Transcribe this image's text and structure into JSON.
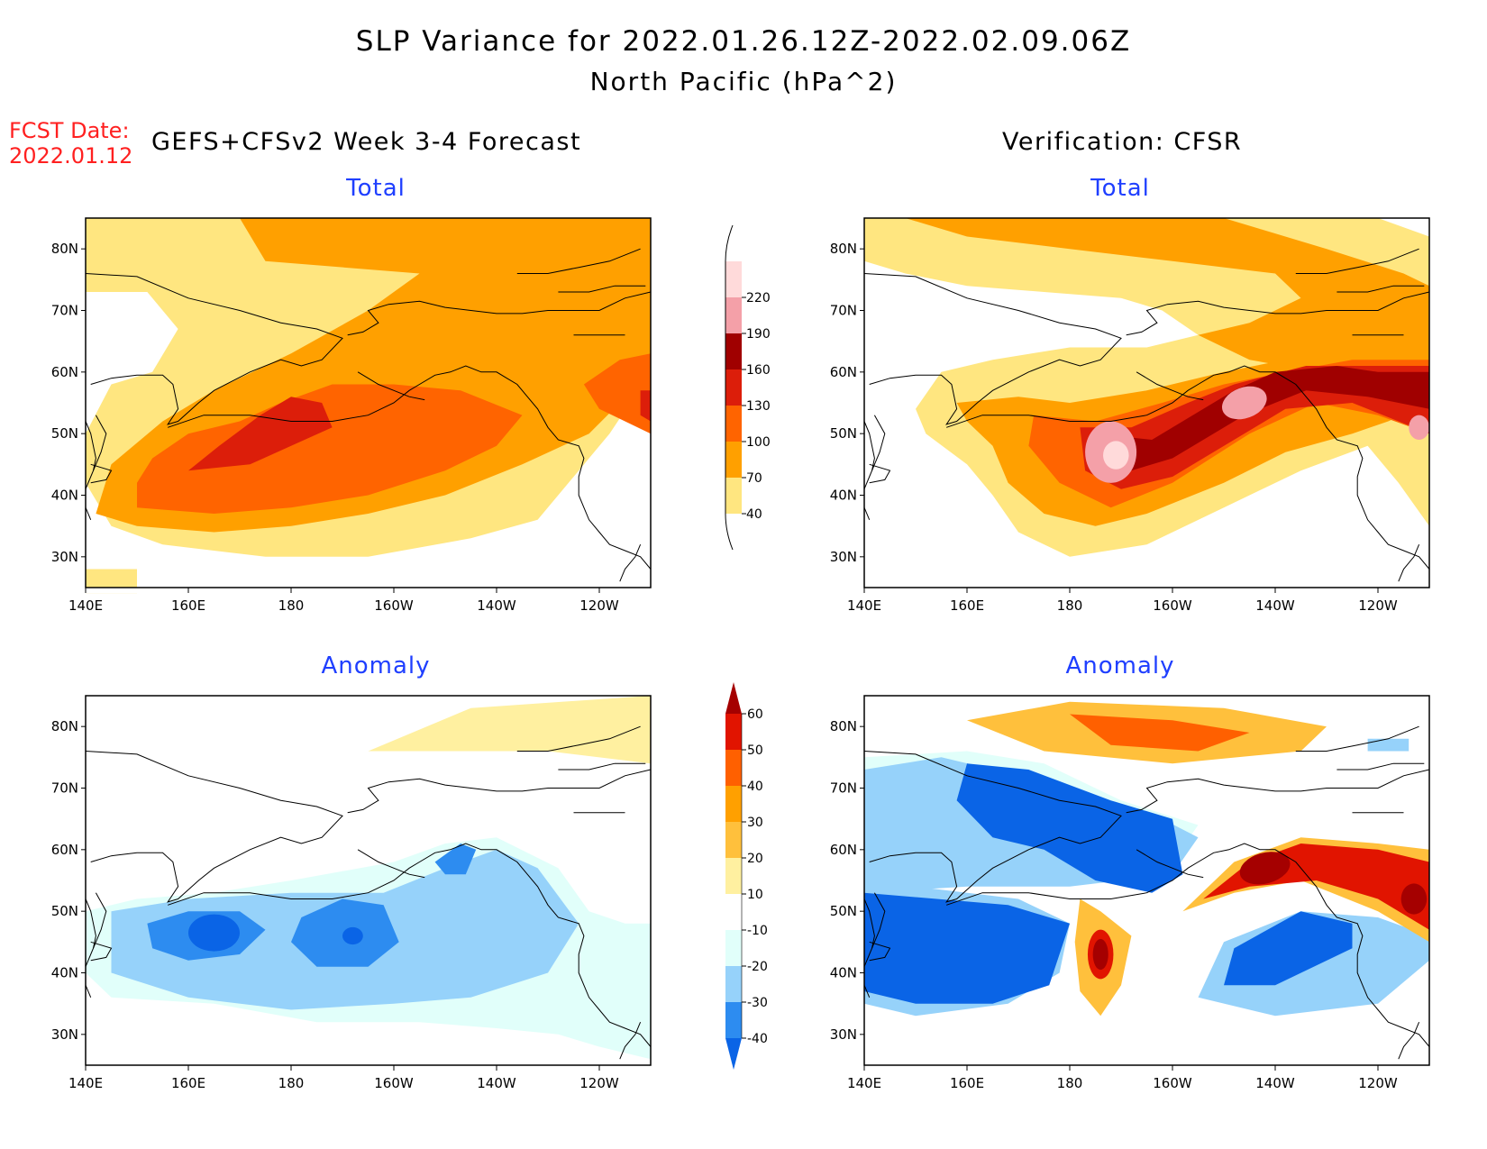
{
  "title_line1": "SLP Variance for 2022.01.26.12Z-2022.02.09.06Z",
  "title_line2": "North Pacific (hPa^2)",
  "fcst_label": "FCST Date:",
  "fcst_date": "2022.01.12",
  "left_column_title": "GEFS+CFSv2 Week 3-4 Forecast",
  "right_column_title": "Verification: CFSR",
  "panels": {
    "forecast_total": {
      "subtitle": "Total"
    },
    "verification_total": {
      "subtitle": "Total"
    },
    "forecast_anomaly": {
      "subtitle": "Anomaly"
    },
    "verification_anomaly": {
      "subtitle": "Anomaly"
    }
  },
  "map_axes": {
    "lat_labels": [
      "30N",
      "40N",
      "50N",
      "60N",
      "70N",
      "80N"
    ],
    "lat_values": [
      30,
      40,
      50,
      60,
      70,
      80
    ],
    "lon_labels": [
      "140E",
      "160E",
      "180",
      "160W",
      "140W",
      "120W"
    ],
    "lon_values": [
      140,
      160,
      180,
      200,
      220,
      240
    ],
    "lon_range": [
      140,
      250
    ],
    "lat_range": [
      25,
      85
    ]
  },
  "total_colorbar": {
    "labels": [
      "40",
      "70",
      "100",
      "130",
      "160",
      "190",
      "220"
    ],
    "colors": [
      "#ffe680",
      "#ffa000",
      "#ff6400",
      "#dc1e0a",
      "#a00000",
      "#f4a0a8",
      "#ffdada"
    ]
  },
  "anomaly_colorbar": {
    "labels": [
      "-40",
      "-30",
      "-20",
      "-10",
      "10",
      "20",
      "30",
      "40",
      "50",
      "60"
    ],
    "colors": [
      "#0a64e6",
      "#2d8cf0",
      "#96d2fa",
      "#e1fffa",
      "#ffffff",
      "#fff0a0",
      "#ffc03c",
      "#ffa000",
      "#ff6000",
      "#e11400",
      "#a50000"
    ]
  },
  "colors": {
    "title_text": "#000000",
    "subtitle_text": "#1f3fff",
    "fcst_text": "#ff2020",
    "coastline": "#000000"
  }
}
